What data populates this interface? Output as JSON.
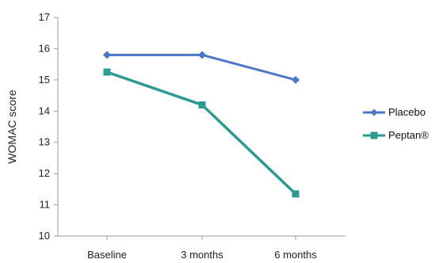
{
  "chart_data": {
    "type": "line",
    "title": "",
    "xlabel": "",
    "ylabel": "WOMAC score",
    "ylim": [
      10,
      17
    ],
    "y_ticks": [
      "10",
      "11",
      "12",
      "13",
      "14",
      "15",
      "16",
      "17"
    ],
    "categories": [
      "Baseline",
      "3 months",
      "6 months"
    ],
    "grid": false,
    "legend_position": "right",
    "series": [
      {
        "name": "Placebo",
        "values": [
          15.8,
          15.8,
          15.0
        ],
        "color": "#4a78c8",
        "marker": "diamond"
      },
      {
        "name": "Peptan®",
        "values": [
          15.25,
          14.2,
          11.35
        ],
        "color": "#2a9a93",
        "marker": "square"
      }
    ]
  }
}
